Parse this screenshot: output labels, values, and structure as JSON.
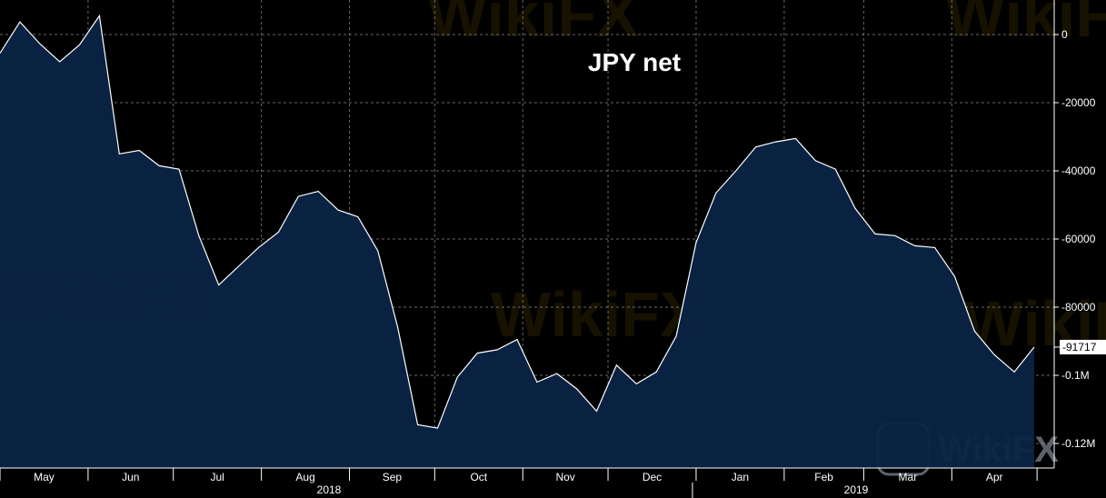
{
  "chart_data": {
    "type": "area",
    "title": "JPY net",
    "x": [
      "2018-05-01",
      "2018-05-08",
      "2018-05-15",
      "2018-05-22",
      "2018-05-29",
      "2018-06-05",
      "2018-06-12",
      "2018-06-19",
      "2018-06-26",
      "2018-07-03",
      "2018-07-10",
      "2018-07-17",
      "2018-07-24",
      "2018-07-31",
      "2018-08-07",
      "2018-08-14",
      "2018-08-21",
      "2018-08-28",
      "2018-09-04",
      "2018-09-11",
      "2018-09-18",
      "2018-09-25",
      "2018-10-02",
      "2018-10-09",
      "2018-10-16",
      "2018-10-23",
      "2018-10-30",
      "2018-11-06",
      "2018-11-13",
      "2018-11-20",
      "2018-11-27",
      "2018-12-04",
      "2018-12-11",
      "2018-12-18",
      "2018-12-25",
      "2019-01-01",
      "2019-01-08",
      "2019-01-15",
      "2019-01-22",
      "2019-01-29",
      "2019-02-05",
      "2019-02-12",
      "2019-02-19",
      "2019-02-26",
      "2019-03-05",
      "2019-03-12",
      "2019-03-19",
      "2019-03-26",
      "2019-04-02",
      "2019-04-09",
      "2019-04-16",
      "2019-04-23",
      "2019-04-30"
    ],
    "values": [
      -5500,
      3700,
      -2700,
      -8000,
      -3000,
      5500,
      -35000,
      -34000,
      -38500,
      -39500,
      -59000,
      -73500,
      -68000,
      -62500,
      -58000,
      -47500,
      -46000,
      -51500,
      -53500,
      -63500,
      -86000,
      -114500,
      -115500,
      -100500,
      -93500,
      -92500,
      -89500,
      -102000,
      -99500,
      -104000,
      -110500,
      -97000,
      -102500,
      -99000,
      -88500,
      -61000,
      -46500,
      -40000,
      -33000,
      -31500,
      -30500,
      -37000,
      -39500,
      -51000,
      -58500,
      -59000,
      -62000,
      -62500,
      -71000,
      -87000,
      -94000,
      -99000,
      -91717
    ],
    "x_tick_labels": [
      "May",
      "Jun",
      "Jul",
      "Aug",
      "Sep",
      "Oct",
      "Nov",
      "Dec",
      "Jan",
      "Feb",
      "Mar",
      "Apr"
    ],
    "x_group_labels": [
      "2018",
      "2019"
    ],
    "y_ticks": [
      0,
      -20000,
      -40000,
      -60000,
      -80000,
      -100000,
      -120000
    ],
    "y_tick_labels": [
      "0",
      "-20000",
      "-40000",
      "-60000",
      "-80000",
      "-0.1M",
      "-0.12M"
    ],
    "ylim": [
      -128000,
      10000
    ],
    "last_value_label": "-91717",
    "xlabel": "",
    "ylabel": "",
    "grid": true,
    "colors": {
      "background": "#000000",
      "fill": "#0b2446",
      "line": "#ffffff",
      "grid": "#8a8a8a",
      "text": "#ffffff"
    },
    "watermark": "WikiFX"
  }
}
